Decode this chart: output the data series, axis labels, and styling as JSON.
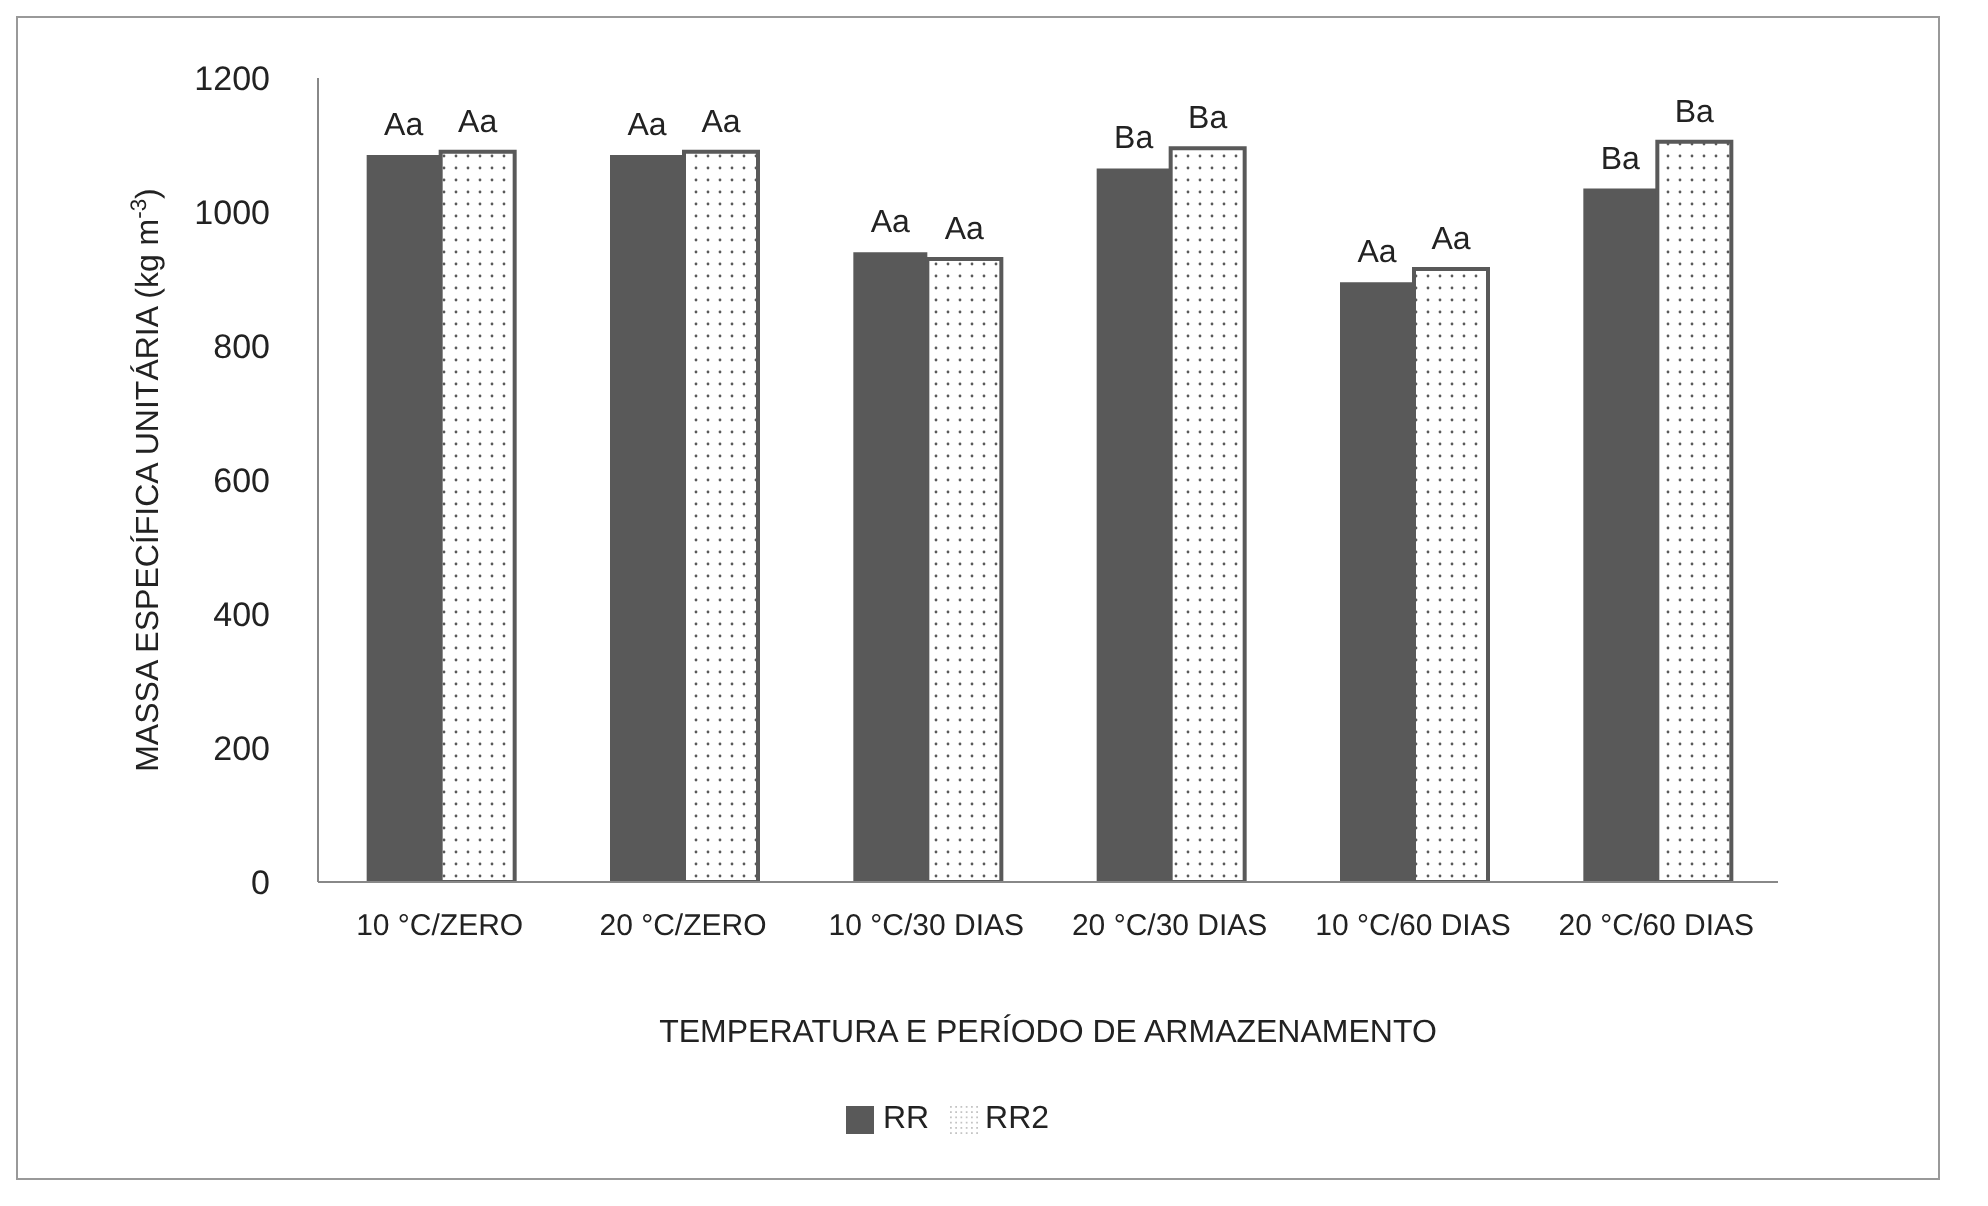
{
  "chart_data": {
    "type": "bar",
    "xlabel": "TEMPERATURA E PERÍODO DE ARMAZENAMENTO",
    "ylabel": "MASSA ESPECÍFICA UNITÁRIA (kg m$^{-3}$)",
    "categories": [
      "10 °C/ZERO",
      "20 °C/ZERO",
      "10 °C/30 DIAS",
      "20 °C/30 DIAS",
      "10 °C/60 DIAS",
      "20 °C/60 DIAS"
    ],
    "series": [
      {
        "name": "RR",
        "color": "#595959",
        "values": [
          1085,
          1085,
          940,
          1065,
          895,
          1035
        ],
        "value_labels": [
          "Aa",
          "Aa",
          "Aa",
          "Ba",
          "Aa",
          "Ba"
        ]
      },
      {
        "name": "RR2",
        "color": "#595959",
        "values": [
          1090,
          1090,
          930,
          1095,
          915,
          1105
        ],
        "value_labels": [
          "Aa",
          "Aa",
          "Aa",
          "Ba",
          "Aa",
          "Ba"
        ]
      }
    ],
    "ylim": [
      0,
      1200
    ],
    "yticks": [
      0,
      200,
      400,
      600,
      800,
      1000,
      1200
    ],
    "grid": false,
    "legend": "bottom"
  }
}
